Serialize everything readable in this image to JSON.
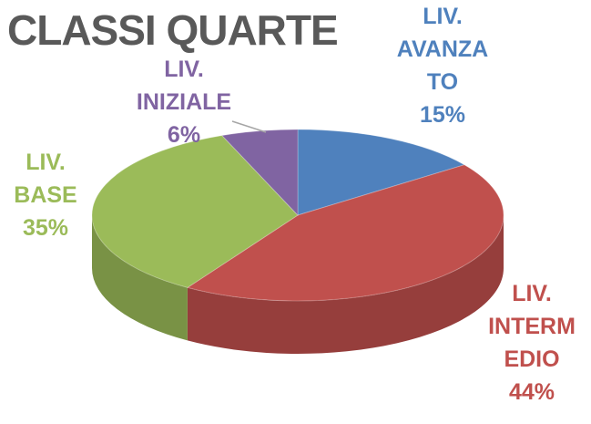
{
  "chart_data": {
    "type": "pie",
    "title": "CLASSI QUARTE",
    "categories": [
      "LIV. AVANZATO",
      "LIV. INTERMEDIO",
      "LIV. BASE",
      "LIV. INIZIALE"
    ],
    "values": [
      15,
      44,
      35,
      6
    ],
    "value_labels": [
      "15%",
      "44%",
      "35%",
      "6%"
    ],
    "colors": [
      "#4f81bd",
      "#c0504d",
      "#9bbb59",
      "#8064a2"
    ]
  }
}
